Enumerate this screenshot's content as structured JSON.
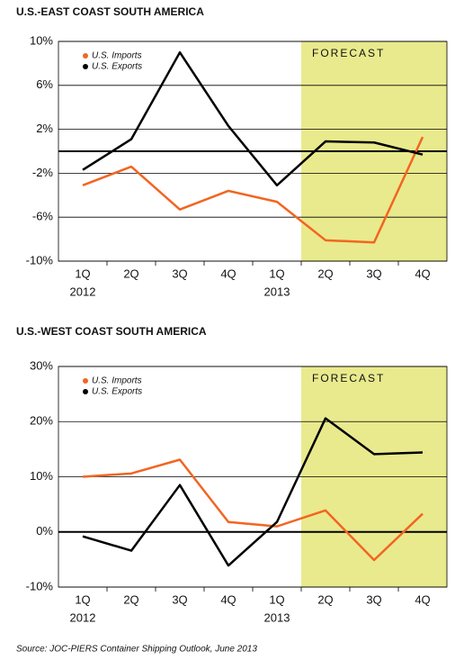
{
  "chart_data": [
    {
      "type": "line",
      "title": "U.S.-EAST COAST SOUTH AMERICA",
      "categories": [
        "1Q",
        "2Q",
        "3Q",
        "4Q",
        "1Q",
        "2Q",
        "3Q",
        "4Q"
      ],
      "years": [
        "2012",
        null,
        null,
        null,
        "2013",
        null,
        null,
        null
      ],
      "series": [
        {
          "name": "U.S. Imports",
          "color": "#f26522",
          "values": [
            -3.1,
            -1.4,
            -5.3,
            -3.6,
            -4.6,
            -8.1,
            -8.3,
            1.3
          ]
        },
        {
          "name": "U.S. Exports",
          "color": "#000000",
          "values": [
            -1.7,
            1.1,
            9.0,
            2.3,
            -3.1,
            0.9,
            0.8,
            -0.3
          ]
        }
      ],
      "ylim": [
        -10,
        10
      ],
      "yticks": [
        {
          "value": 10,
          "label": "10%"
        },
        {
          "value": 6,
          "label": "6%"
        },
        {
          "value": 2,
          "label": "2%"
        },
        {
          "value": -2,
          "label": "-2%"
        },
        {
          "value": -6,
          "label": "-6%"
        },
        {
          "value": -10,
          "label": "-10%"
        }
      ],
      "forecast": {
        "label": "FORECAST",
        "start_index": 5,
        "color": "#e9ea8d"
      },
      "grid": true,
      "legend": "upper left"
    },
    {
      "type": "line",
      "title": "U.S.-WEST COAST SOUTH AMERICA",
      "categories": [
        "1Q",
        "2Q",
        "3Q",
        "4Q",
        "1Q",
        "2Q",
        "3Q",
        "4Q"
      ],
      "years": [
        "2012",
        null,
        null,
        null,
        "2013",
        null,
        null,
        null
      ],
      "series": [
        {
          "name": "U.S. Imports",
          "color": "#f26522",
          "values": [
            10.0,
            10.6,
            13.1,
            1.8,
            1.0,
            3.9,
            -5.1,
            3.3
          ]
        },
        {
          "name": "U.S. Exports",
          "color": "#000000",
          "values": [
            -0.8,
            -3.4,
            8.5,
            -6.1,
            1.8,
            20.6,
            14.1,
            14.4
          ]
        }
      ],
      "ylim": [
        -10,
        30
      ],
      "yticks": [
        {
          "value": 30,
          "label": "30%"
        },
        {
          "value": 20,
          "label": "20%"
        },
        {
          "value": 10,
          "label": "10%"
        },
        {
          "value": 0,
          "label": "0%"
        },
        {
          "value": -10,
          "label": "-10%"
        }
      ],
      "forecast": {
        "label": "FORECAST",
        "start_index": 5,
        "color": "#e9ea8d"
      },
      "grid": true,
      "legend": "upper left"
    }
  ],
  "source": "Source: JOC-PIERS Container Shipping Outlook, June 2013"
}
